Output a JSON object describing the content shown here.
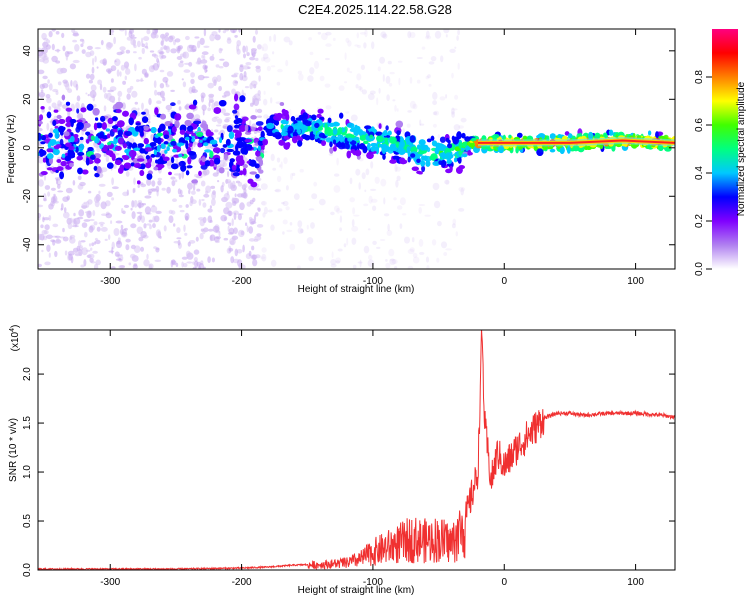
{
  "title": "C2E4.2025.114.22.58.G28",
  "chart_data": [
    {
      "type": "heatmap",
      "xlabel": "Height of straight line (km)",
      "ylabel": "Frequency (Hz)",
      "xlim": [
        -355,
        130
      ],
      "ylim": [
        -50,
        49
      ],
      "xticks": [
        -300,
        -200,
        -100,
        0,
        100
      ],
      "yticks": [
        -40,
        -20,
        0,
        20,
        40
      ],
      "colorbar": {
        "label": "Normalized spectral amplitude",
        "range": [
          0,
          1
        ],
        "ticks": [
          0.0,
          0.2,
          0.4,
          0.6,
          0.8
        ],
        "colormap": [
          "#ffffff",
          "#b080f0",
          "#8000ff",
          "#0000ff",
          "#00c8ff",
          "#00ff80",
          "#40ff00",
          "#ffff00",
          "#ff8000",
          "#ff0000",
          "#ff0080"
        ]
      },
      "ridge": [
        {
          "x": -355,
          "freq": 2,
          "amp": 0.25
        },
        {
          "x": -300,
          "freq": 2,
          "amp": 0.27
        },
        {
          "x": -250,
          "freq": 2,
          "amp": 0.28
        },
        {
          "x": -185,
          "freq": 2,
          "amp": 0.3
        },
        {
          "x": -180,
          "freq": 9,
          "amp": 0.35
        },
        {
          "x": -150,
          "freq": 8,
          "amp": 0.45
        },
        {
          "x": -120,
          "freq": 6,
          "amp": 0.5
        },
        {
          "x": -100,
          "freq": 3,
          "amp": 0.5
        },
        {
          "x": -80,
          "freq": 1,
          "amp": 0.48
        },
        {
          "x": -60,
          "freq": -2,
          "amp": 0.5
        },
        {
          "x": -40,
          "freq": -2,
          "amp": 0.5
        },
        {
          "x": -30,
          "freq": 1,
          "amp": 0.55
        },
        {
          "x": -20,
          "freq": 2,
          "amp": 0.85
        },
        {
          "x": 0,
          "freq": 2,
          "amp": 0.85
        },
        {
          "x": 50,
          "freq": 2,
          "amp": 0.85
        },
        {
          "x": 90,
          "freq": 3,
          "amp": 0.85
        },
        {
          "x": 130,
          "freq": 2,
          "amp": 0.85
        }
      ]
    },
    {
      "type": "line",
      "xlabel": "Height of straight line (km)",
      "ylabel": "SNR (10 * v/v)",
      "yscale_label": "(x10",
      "yscale_exp": "4",
      "xlim": [
        -355,
        130
      ],
      "ylim": [
        0,
        2.45
      ],
      "xticks": [
        -300,
        -200,
        -100,
        0,
        100
      ],
      "yticks": [
        0.0,
        0.5,
        1.0,
        1.5,
        2.0
      ],
      "line_color": "#f03030",
      "series": [
        {
          "x": [
            -355,
            -300,
            -250,
            -200,
            -180,
            -160,
            -140,
            -120,
            -110,
            -100,
            -90,
            -80,
            -70,
            -60,
            -50,
            -40,
            -30,
            -25,
            -20,
            -17,
            -15,
            -10,
            -5,
            0,
            10,
            20,
            30,
            40,
            50,
            60,
            80,
            100,
            120,
            130
          ],
          "values": [
            0.01,
            0.01,
            0.01,
            0.02,
            0.03,
            0.05,
            0.06,
            0.08,
            0.12,
            0.2,
            0.25,
            0.3,
            0.35,
            0.33,
            0.35,
            0.3,
            0.5,
            0.75,
            1.0,
            2.45,
            1.5,
            0.9,
            1.2,
            1.05,
            1.25,
            1.4,
            1.55,
            1.6,
            1.6,
            1.58,
            1.6,
            1.6,
            1.58,
            1.56
          ]
        }
      ]
    }
  ]
}
